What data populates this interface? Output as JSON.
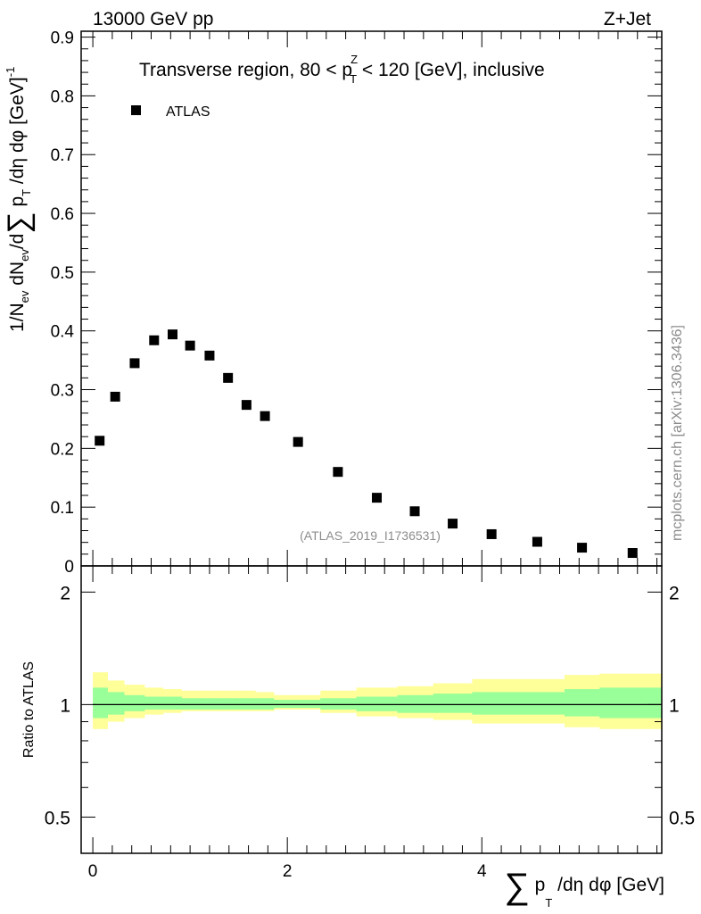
{
  "header": {
    "left": "13000 GeV pp",
    "right": "Z+Jet"
  },
  "side_label": "mcplots.cern.ch [arXiv:1306.3436]",
  "chart_data": [
    {
      "type": "scatter",
      "title": "Transverse region, 80 < p_T^Z < 120 [GeV], inclusive",
      "ylabel": "1/N_ev dN_ev/d∑p_T /dη dφ [GeV]^-1",
      "xlabel": "∑p_T /dη dφ [GeV]",
      "xlim": [
        -0.12,
        5.85
      ],
      "ylim": [
        0,
        0.91
      ],
      "yticks": [
        "0",
        "0.1",
        "0.2",
        "0.3",
        "0.4",
        "0.5",
        "0.6",
        "0.7",
        "0.8",
        "0.9"
      ],
      "legend": {
        "position": "top-left",
        "entries": [
          "ATLAS"
        ]
      },
      "watermark": "(ATLAS_2019_I1736531)",
      "series": [
        {
          "name": "ATLAS",
          "marker": "square",
          "color": "#000000",
          "x": [
            0.07,
            0.23,
            0.43,
            0.63,
            0.82,
            1.0,
            1.2,
            1.39,
            1.58,
            1.77,
            2.11,
            2.52,
            2.92,
            3.31,
            3.7,
            4.1,
            4.57,
            5.03,
            5.55
          ],
          "y": [
            0.213,
            0.288,
            0.345,
            0.384,
            0.394,
            0.375,
            0.358,
            0.32,
            0.274,
            0.255,
            0.211,
            0.16,
            0.116,
            0.093,
            0.072,
            0.054,
            0.041,
            0.031,
            0.022
          ]
        }
      ]
    },
    {
      "type": "area",
      "ylabel": "Ratio to ATLAS",
      "ylim": [
        0.4,
        2.35
      ],
      "ytick_labels": [
        "0.5",
        "1",
        "2"
      ],
      "xtick_labels": [
        "0",
        "2",
        "4"
      ],
      "bands": {
        "colors": {
          "outer": "#ffff99",
          "inner": "#99ff99",
          "line": "#000000"
        },
        "edges": [
          0.0,
          0.15,
          0.32,
          0.53,
          0.72,
          0.91,
          1.1,
          1.3,
          1.48,
          1.67,
          1.86,
          2.34,
          2.71,
          3.13,
          3.5,
          3.9,
          4.3,
          4.85,
          5.21,
          5.85
        ],
        "outer_hi": [
          1.22,
          1.16,
          1.13,
          1.11,
          1.1,
          1.09,
          1.09,
          1.09,
          1.09,
          1.08,
          1.06,
          1.09,
          1.11,
          1.12,
          1.14,
          1.17,
          1.17,
          1.2,
          1.21
        ],
        "outer_lo": [
          0.86,
          0.9,
          0.92,
          0.94,
          0.95,
          0.96,
          0.96,
          0.96,
          0.96,
          0.96,
          0.97,
          0.95,
          0.93,
          0.92,
          0.91,
          0.89,
          0.89,
          0.87,
          0.86
        ],
        "inner_hi": [
          1.11,
          1.08,
          1.06,
          1.05,
          1.05,
          1.04,
          1.04,
          1.04,
          1.04,
          1.04,
          1.03,
          1.04,
          1.05,
          1.06,
          1.07,
          1.08,
          1.08,
          1.1,
          1.11
        ],
        "inner_lo": [
          0.92,
          0.94,
          0.96,
          0.97,
          0.97,
          0.97,
          0.97,
          0.97,
          0.97,
          0.97,
          0.98,
          0.97,
          0.96,
          0.95,
          0.95,
          0.94,
          0.94,
          0.93,
          0.92
        ]
      },
      "reference_value": 1
    }
  ]
}
